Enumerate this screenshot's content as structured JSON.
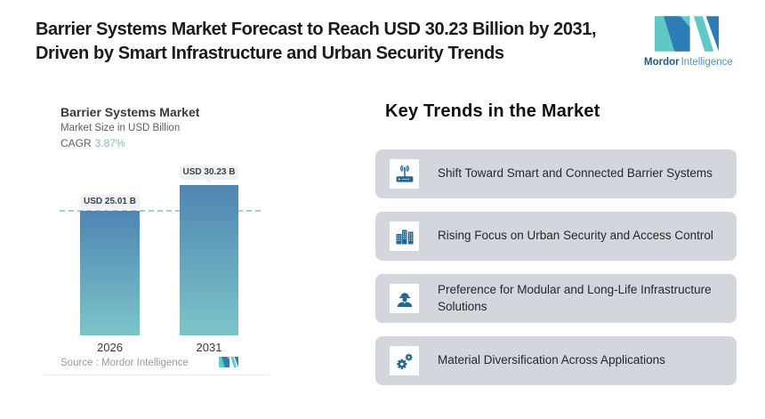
{
  "header": {
    "title_line1": "Barrier Systems Market Forecast to Reach USD 30.23 Billion by 2031,",
    "title_line2": "Driven by Smart Infrastructure and Urban Security Trends",
    "logo": {
      "brand": "Mordor",
      "brand_suffix": "Intelligence"
    }
  },
  "chart_data": {
    "type": "bar",
    "title": "Barrier Systems Market",
    "subtitle": "Market Size in USD Billion",
    "cagr_label": "CAGR",
    "cagr_value": "3.87%",
    "categories": [
      "2026",
      "2031"
    ],
    "values": [
      25.01,
      30.23
    ],
    "value_labels": [
      "USD 25.01 B",
      "USD 30.23 B"
    ],
    "unit": "USD Billion",
    "ylim": [
      0,
      33
    ],
    "grid": false,
    "legend": false,
    "reference_line_value": 25.01,
    "source": "Source :  Mordor Intelligence"
  },
  "trends": {
    "heading": "Key Trends in the Market",
    "items": [
      {
        "icon": "wifi-router-icon",
        "label": "Shift Toward Smart and Connected Barrier Systems"
      },
      {
        "icon": "city-buildings-icon",
        "label": "Rising Focus on Urban Security and Access Control"
      },
      {
        "icon": "engineer-icon",
        "label": "Preference for Modular and Long-Life Infrastructure Solutions"
      },
      {
        "icon": "gears-icon",
        "label": "Material Diversification Across Applications"
      }
    ]
  },
  "colors": {
    "accent_teal": "#5fc9c6",
    "brand_blue": "#2d7cb5",
    "brand_navy": "#1e5a85",
    "brand_light_blue": "#4e94c4",
    "bar_top": "#4e86b2",
    "bar_bottom": "#7dc4c9",
    "dashed_line": "#aacae1",
    "chip_bg": "#eef1f5",
    "trend_card_bg": "#d3d6dc",
    "icon_blue": "#24688e",
    "cagr_blue": "#86b5d7"
  }
}
